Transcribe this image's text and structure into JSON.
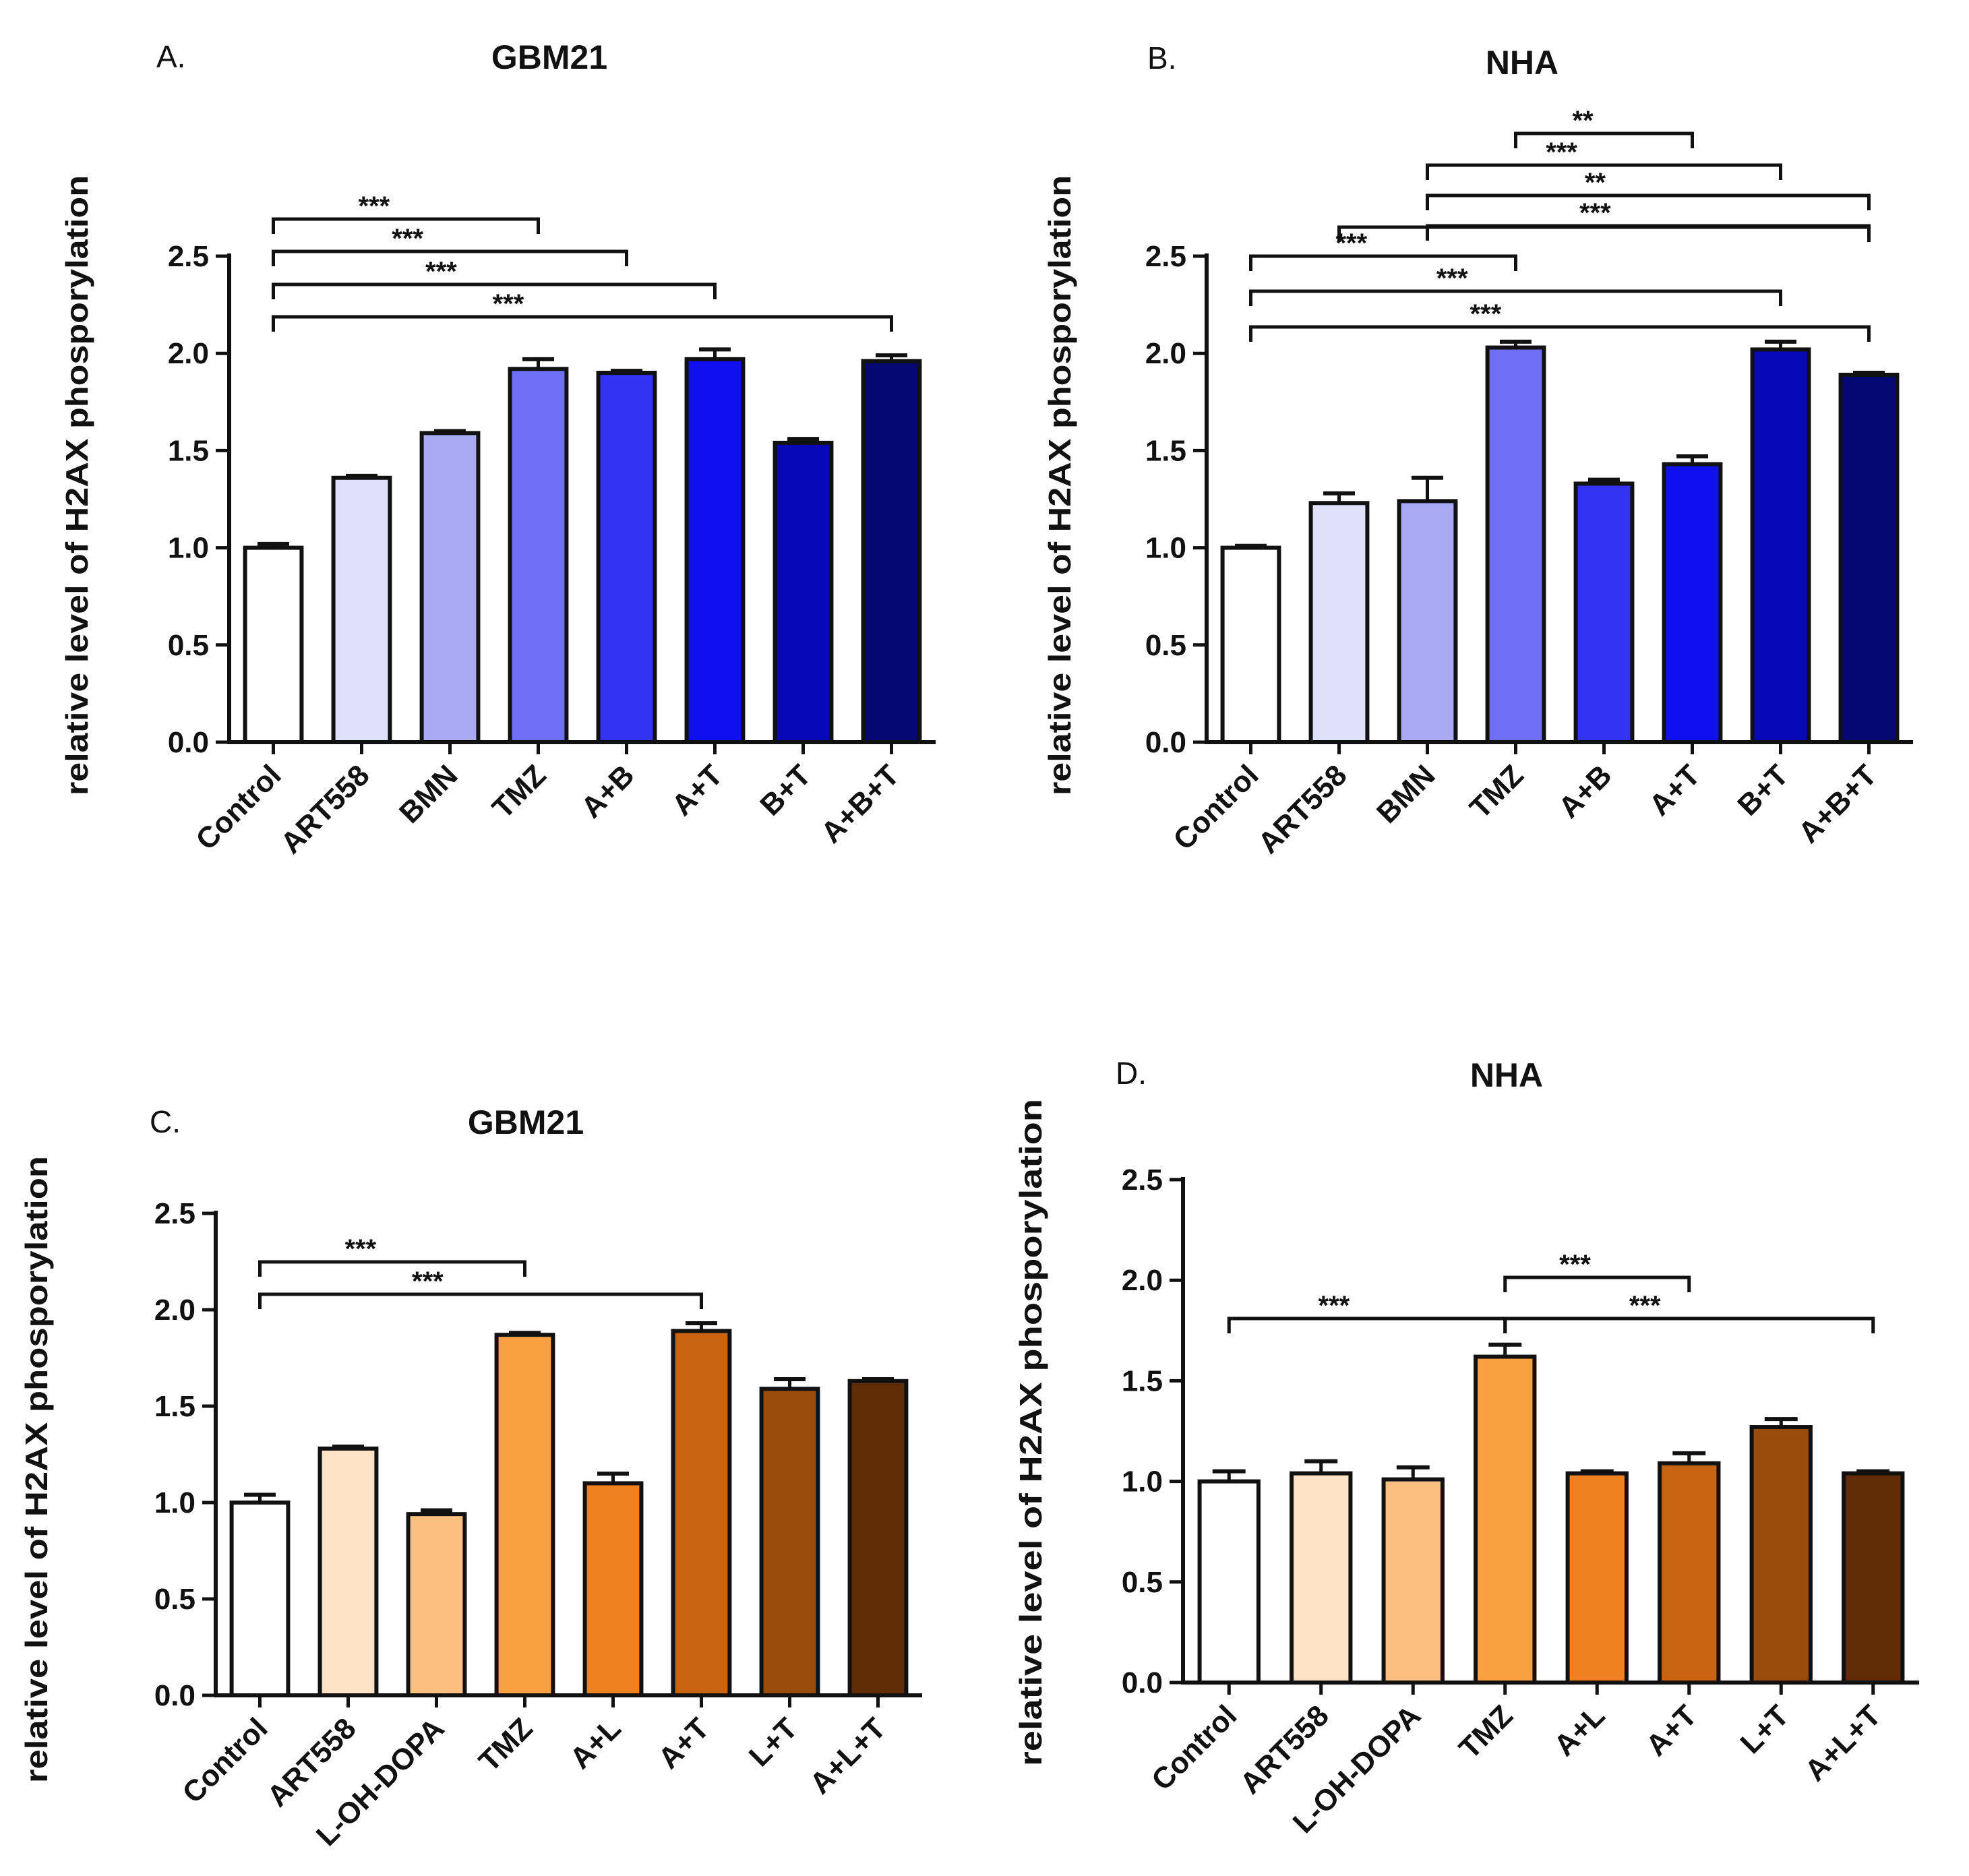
{
  "chart_data": [
    {
      "type": "bar",
      "panel": "A.",
      "title": "GBM21",
      "ylabel": "relative level of H2AX phosporylation",
      "ylim": [
        0,
        2.5
      ],
      "yticks": [
        "0.0",
        "0.5",
        "1.0",
        "1.5",
        "2.0",
        "2.5"
      ],
      "categories": [
        "Control",
        "ART558",
        "BMN",
        "TMZ",
        "A+B",
        "A+T",
        "B+T",
        "A+B+T"
      ],
      "values": [
        1.0,
        1.36,
        1.59,
        1.92,
        1.9,
        1.97,
        1.54,
        1.96
      ],
      "errors": [
        0.02,
        0.01,
        0.01,
        0.05,
        0.01,
        0.05,
        0.02,
        0.03
      ],
      "colors": [
        "#ffffff",
        "#e0e0fb",
        "#a8aaf5",
        "#6f6ff4",
        "#3232f2",
        "#0f0ff0",
        "#0808b8",
        "#060670"
      ],
      "significance": [
        {
          "from": 0,
          "to": 3,
          "label": "***"
        },
        {
          "from": 0,
          "to": 4,
          "label": "***"
        },
        {
          "from": 0,
          "to": 5,
          "label": "***"
        },
        {
          "from": 0,
          "to": 7,
          "label": "***"
        }
      ]
    },
    {
      "type": "bar",
      "panel": "B.",
      "title": "NHA",
      "ylabel": "relative level of H2AX phosporylation",
      "ylim": [
        0,
        2.5
      ],
      "yticks": [
        "0.0",
        "0.5",
        "1.0",
        "1.5",
        "2.0",
        "2.5"
      ],
      "categories": [
        "Control",
        "ART558",
        "BMN",
        "TMZ",
        "A+B",
        "A+T",
        "B+T",
        "A+B+T"
      ],
      "values": [
        1.0,
        1.23,
        1.24,
        2.03,
        1.33,
        1.43,
        2.02,
        1.89
      ],
      "errors": [
        0.01,
        0.05,
        0.12,
        0.03,
        0.02,
        0.04,
        0.04,
        0.01
      ],
      "colors": [
        "#ffffff",
        "#e0e0fb",
        "#a8aaf5",
        "#6f6ff4",
        "#3232f2",
        "#0f0ff0",
        "#0808b8",
        "#060670"
      ],
      "significance": [
        {
          "from": 3,
          "to": 5,
          "label": "**"
        },
        {
          "from": 2,
          "to": 6,
          "label": "***"
        },
        {
          "from": 2,
          "to": 7,
          "label": "**"
        },
        {
          "from": 2,
          "to": 7,
          "label": "***"
        },
        {
          "from": 1,
          "to": 7,
          "label": ""
        },
        {
          "from": 0,
          "to": 3,
          "label": "***"
        },
        {
          "from": 0,
          "to": 6,
          "label": "***"
        },
        {
          "from": 0,
          "to": 7,
          "label": "***"
        }
      ]
    },
    {
      "type": "bar",
      "panel": "C.",
      "title": "GBM21",
      "ylabel": "relative level of H2AX phosporylation",
      "ylim": [
        0,
        2.5
      ],
      "yticks": [
        "0.0",
        "0.5",
        "1.0",
        "1.5",
        "2.0",
        "2.5"
      ],
      "categories": [
        "Control",
        "ART558",
        "L-OH-DOPA",
        "TMZ",
        "A+L",
        "A+T",
        "L+T",
        "A+L+T"
      ],
      "values": [
        1.0,
        1.28,
        0.94,
        1.87,
        1.1,
        1.89,
        1.59,
        1.63
      ],
      "errors": [
        0.04,
        0.01,
        0.02,
        0.01,
        0.05,
        0.04,
        0.05,
        0.01
      ],
      "colors": [
        "#ffffff",
        "#fde2c6",
        "#fcbf80",
        "#f9a140",
        "#f08020",
        "#c86410",
        "#9a4c0c",
        "#632c08"
      ],
      "significance": [
        {
          "from": 0,
          "to": 3,
          "label": "***"
        },
        {
          "from": 0,
          "to": 5,
          "label": "***"
        }
      ]
    },
    {
      "type": "bar",
      "panel": "D.",
      "title": "NHA",
      "ylabel": "relative level of H2AX phosporylation",
      "ylim": [
        0,
        2.5
      ],
      "yticks": [
        "0.0",
        "0.5",
        "1.0",
        "1.5",
        "2.0",
        "2.5"
      ],
      "categories": [
        "Control",
        "ART558",
        "L-OH-DOPA",
        "TMZ",
        "A+L",
        "A+T",
        "L+T",
        "A+L+T"
      ],
      "values": [
        1.0,
        1.04,
        1.01,
        1.62,
        1.04,
        1.09,
        1.27,
        1.04
      ],
      "errors": [
        0.05,
        0.06,
        0.06,
        0.06,
        0.01,
        0.05,
        0.04,
        0.01
      ],
      "colors": [
        "#ffffff",
        "#fde2c6",
        "#fcbf80",
        "#f9a140",
        "#f08020",
        "#c86410",
        "#9a4c0c",
        "#632c08"
      ],
      "significance": [
        {
          "from": 3,
          "to": 5,
          "label": "***"
        },
        {
          "from": 0,
          "to": 3,
          "label": "***"
        },
        {
          "from": 3,
          "to": 7,
          "label": "***"
        }
      ]
    }
  ]
}
